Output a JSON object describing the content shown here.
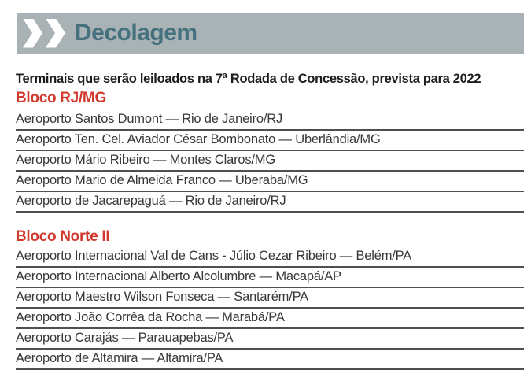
{
  "header": {
    "title": "Decolagem",
    "icon": "double-chevron-right-icon",
    "bar_color": "#a9b3b6",
    "title_color": "#45707e"
  },
  "subtitle": "Terminais que serão leiloados na 7ª Rodada de Concessão, prevista para 2022",
  "colors": {
    "accent_red": "#d23a2e",
    "body_text": "#383838",
    "divider_line": "#4f4f4f"
  },
  "sections": [
    {
      "heading": "Bloco RJ/MG",
      "items": [
        "Aeroporto Santos Dumont — Rio de Janeiro/RJ",
        "Aeroporto Ten. Cel. Aviador César Bombonato — Uberlândia/MG",
        "Aeroporto Mário Ribeiro — Montes Claros/MG",
        "Aeroporto Mario de Almeida Franco — Uberaba/MG",
        "Aeroporto de Jacarepaguá — Rio de Janeiro/RJ"
      ]
    },
    {
      "heading": "Bloco Norte II",
      "items": [
        "Aeroporto Internacional Val de Cans - Júlio Cezar Ribeiro — Belém/PA",
        "Aeroporto Internacional Alberto Alcolumbre — Macapá/AP",
        "Aeroporto Maestro Wilson Fonseca — Santarém/PA",
        "Aeroporto João Corrêa da Rocha — Marabá/PA",
        "Aeroporto Carajás — Parauapebas/PA",
        "Aeroporto de Altamira — Altamira/PA"
      ]
    }
  ]
}
